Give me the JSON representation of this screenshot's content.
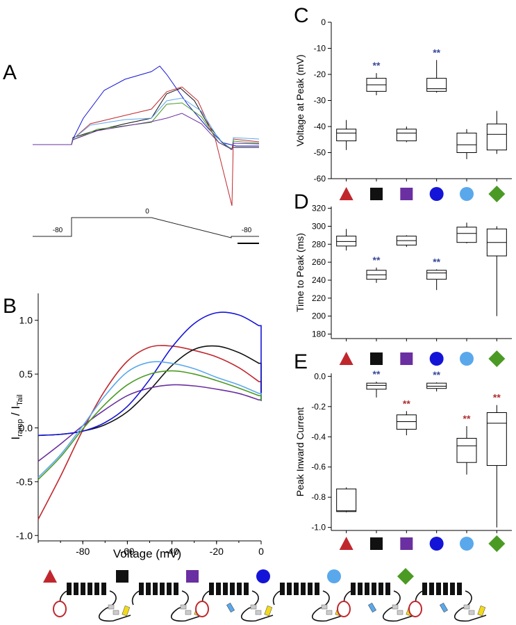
{
  "panel_labels": {
    "A": "A",
    "B": "B",
    "C": "C",
    "D": "D",
    "E": "E"
  },
  "colors": {
    "red": "#c0272d",
    "black": "#111111",
    "purple": "#6a2fa0",
    "blue": "#1414d8",
    "lightblue": "#5aa8ec",
    "green": "#4b9a24",
    "sig_blue": "#3a4a9a",
    "sig_red": "#b03030"
  },
  "groups": [
    {
      "name": "red",
      "marker": "triangle",
      "color": "#c0272d"
    },
    {
      "name": "black",
      "marker": "square",
      "color": "#111111"
    },
    {
      "name": "purple",
      "marker": "square",
      "color": "#6a2fa0"
    },
    {
      "name": "blue",
      "marker": "circle",
      "color": "#1414d8"
    },
    {
      "name": "lightblue",
      "marker": "circle",
      "color": "#5aa8ec"
    },
    {
      "name": "green",
      "marker": "diamond",
      "color": "#4b9a24"
    }
  ],
  "panelA": {
    "protocol_labels": {
      "hold_left": "-80",
      "step": "0",
      "hold_right": "-80"
    }
  },
  "chart_data": [
    {
      "id": "B",
      "type": "line",
      "title": "",
      "xlabel": "Voltage (mV)",
      "ylabel": "Iramp / ITail",
      "ylabel_main": "I",
      "ylabel_sub1": "ramp",
      "ylabel_mid": " / I",
      "ylabel_sub2": "Tail",
      "xlim": [
        -100,
        0
      ],
      "ylim": [
        -1.05,
        1.25
      ],
      "xticks": [
        -80,
        -60,
        -40,
        -20,
        0
      ],
      "xtick_labels": [
        "-80",
        "-60",
        "-40",
        "-20",
        "0"
      ],
      "yticks": [
        -1.0,
        -0.5,
        0.0,
        0.5,
        1.0
      ],
      "ytick_labels": [
        "-1.0",
        "-0.5",
        "0.0",
        "0.5",
        "1.0"
      ],
      "series": [
        {
          "name": "red",
          "x": [
            -100,
            -90,
            -80,
            -70,
            -60,
            -50,
            -40,
            -30,
            -20,
            -10,
            -1
          ],
          "y": [
            -0.85,
            -0.45,
            -0.02,
            0.35,
            0.62,
            0.75,
            0.76,
            0.72,
            0.66,
            0.56,
            0.43
          ]
        },
        {
          "name": "black",
          "x": [
            -100,
            -90,
            -80,
            -70,
            -60,
            -50,
            -40,
            -30,
            -20,
            -10,
            -1
          ],
          "y": [
            -0.07,
            -0.06,
            -0.03,
            0.03,
            0.15,
            0.35,
            0.58,
            0.73,
            0.76,
            0.7,
            0.6
          ]
        },
        {
          "name": "purple",
          "x": [
            -100,
            -90,
            -80,
            -70,
            -60,
            -50,
            -40,
            -30,
            -20,
            -10,
            -1
          ],
          "y": [
            -0.31,
            -0.15,
            0.02,
            0.17,
            0.3,
            0.37,
            0.4,
            0.39,
            0.36,
            0.32,
            0.26
          ]
        },
        {
          "name": "blue",
          "x": [
            -100,
            -90,
            -80,
            -70,
            -60,
            -50,
            -40,
            -30,
            -20,
            -10,
            -1
          ],
          "y": [
            -0.07,
            -0.06,
            -0.03,
            0.05,
            0.2,
            0.45,
            0.75,
            0.97,
            1.07,
            1.05,
            0.95
          ]
        },
        {
          "name": "lightblue",
          "x": [
            -100,
            -90,
            -80,
            -70,
            -60,
            -50,
            -40,
            -30,
            -20,
            -10,
            -1
          ],
          "y": [
            -0.46,
            -0.25,
            0.02,
            0.3,
            0.52,
            0.61,
            0.6,
            0.55,
            0.47,
            0.4,
            0.32
          ]
        },
        {
          "name": "green",
          "x": [
            -100,
            -90,
            -80,
            -70,
            -60,
            -50,
            -40,
            -30,
            -20,
            -10,
            -1
          ],
          "y": [
            -0.48,
            -0.27,
            -0.01,
            0.22,
            0.4,
            0.5,
            0.53,
            0.5,
            0.44,
            0.37,
            0.3
          ]
        }
      ]
    },
    {
      "id": "C",
      "type": "box",
      "ylabel": "Voltage at Peak (mV)",
      "ylim": [
        -60,
        0
      ],
      "yticks": [
        -60,
        -50,
        -40,
        -30,
        -20,
        -10,
        0
      ],
      "ytick_labels": [
        "-60",
        "-50",
        "-40",
        "-30",
        "-20",
        "-10",
        "0"
      ],
      "boxes": [
        {
          "group": "red",
          "min": -49,
          "q1": -45.5,
          "median": -42.5,
          "q3": -41,
          "max": -37.5,
          "sig": ""
        },
        {
          "group": "black",
          "min": -28,
          "q1": -26.5,
          "median": -24,
          "q3": -21.5,
          "max": -19.5,
          "sig": "**"
        },
        {
          "group": "purple",
          "min": -46,
          "q1": -45.5,
          "median": -42.5,
          "q3": -41,
          "max": -40,
          "sig": ""
        },
        {
          "group": "blue",
          "min": -27,
          "q1": -26.5,
          "median": -25.5,
          "q3": -21.5,
          "max": -14.5,
          "sig": "**"
        },
        {
          "group": "lightblue",
          "min": -52.5,
          "q1": -50,
          "median": -47,
          "q3": -42.5,
          "max": -41,
          "sig": ""
        },
        {
          "group": "green",
          "min": -50.5,
          "q1": -49,
          "median": -43,
          "q3": -39,
          "max": -34,
          "sig": ""
        }
      ],
      "sig_color": "sig_blue"
    },
    {
      "id": "D",
      "type": "box",
      "ylabel": "Time to Peak (ms)",
      "ylim": [
        175,
        322
      ],
      "yticks": [
        180,
        200,
        220,
        240,
        260,
        280,
        300,
        320
      ],
      "ytick_labels": [
        "180",
        "200",
        "220",
        "240",
        "260",
        "280",
        "300",
        "320"
      ],
      "boxes": [
        {
          "group": "red",
          "min": 273,
          "q1": 278,
          "median": 283,
          "q3": 289,
          "max": 297,
          "sig": ""
        },
        {
          "group": "black",
          "min": 237,
          "q1": 241,
          "median": 246,
          "q3": 251,
          "max": 254,
          "sig": "**"
        },
        {
          "group": "purple",
          "min": 277,
          "q1": 279,
          "median": 284,
          "q3": 289,
          "max": 290,
          "sig": ""
        },
        {
          "group": "blue",
          "min": 229,
          "q1": 241,
          "median": 248,
          "q3": 251,
          "max": 252,
          "sig": "**"
        },
        {
          "group": "lightblue",
          "min": 281,
          "q1": 282,
          "median": 292,
          "q3": 299,
          "max": 304,
          "sig": ""
        },
        {
          "group": "green",
          "min": 200,
          "q1": 267,
          "median": 282,
          "q3": 297,
          "max": 300,
          "sig": ""
        }
      ],
      "sig_color": "sig_blue"
    },
    {
      "id": "E",
      "type": "box",
      "ylabel": "Peak Inward Current",
      "ylim": [
        -1.02,
        0.02
      ],
      "yticks": [
        -1.0,
        -0.8,
        -0.6,
        -0.4,
        -0.2,
        0.0
      ],
      "ytick_labels": [
        "-1.0",
        "-0.8",
        "-0.6",
        "-0.4",
        "-0.2",
        "0.0"
      ],
      "boxes": [
        {
          "group": "red",
          "min": -0.9,
          "q1": -0.895,
          "median": -0.89,
          "q3": -0.745,
          "max": -0.735,
          "sig": "",
          "sigc": ""
        },
        {
          "group": "black",
          "min": -0.14,
          "q1": -0.085,
          "median": -0.06,
          "q3": -0.045,
          "max": -0.035,
          "sig": "**",
          "sigc": "sig_blue"
        },
        {
          "group": "purple",
          "min": -0.39,
          "q1": -0.35,
          "median": -0.3,
          "q3": -0.255,
          "max": -0.23,
          "sig": "**",
          "sigc": "sig_red"
        },
        {
          "group": "blue",
          "min": -0.1,
          "q1": -0.08,
          "median": -0.065,
          "q3": -0.045,
          "max": -0.04,
          "sig": "**",
          "sigc": "sig_blue"
        },
        {
          "group": "lightblue",
          "min": -0.65,
          "q1": -0.57,
          "median": -0.46,
          "q3": -0.41,
          "max": -0.33,
          "sig": "**",
          "sigc": "sig_red"
        },
        {
          "group": "green",
          "min": -1.0,
          "q1": -0.59,
          "median": -0.31,
          "q3": -0.24,
          "max": -0.19,
          "sig": "**",
          "sigc": "sig_red"
        }
      ]
    }
  ]
}
